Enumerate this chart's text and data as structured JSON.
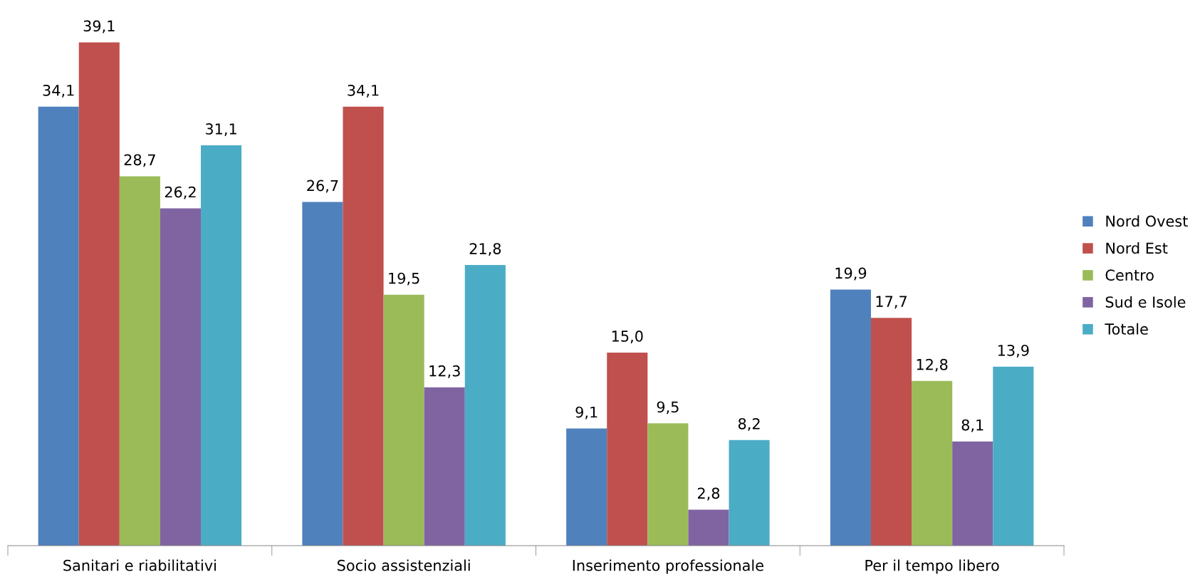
{
  "chart_data": {
    "type": "bar",
    "categories": [
      "Sanitari e riabilitativi",
      "Socio assistenziali",
      "Inserimento professionale",
      "Per il tempo libero"
    ],
    "series": [
      {
        "name": "Nord Ovest",
        "color": "#4f81bd",
        "values": [
          34.1,
          26.7,
          9.1,
          19.9
        ],
        "value_labels": [
          "34,1",
          "26,7",
          "9,1",
          "19,9"
        ]
      },
      {
        "name": "Nord Est",
        "color": "#c0504d",
        "values": [
          39.1,
          34.1,
          15.0,
          17.7
        ],
        "value_labels": [
          "39,1",
          "34,1",
          "15,0",
          "17,7"
        ]
      },
      {
        "name": "Centro",
        "color": "#9bbb59",
        "values": [
          28.7,
          19.5,
          9.5,
          12.8
        ],
        "value_labels": [
          "28,7",
          "19,5",
          "9,5",
          "12,8"
        ]
      },
      {
        "name": "Sud e Isole",
        "color": "#8064a2",
        "values": [
          26.2,
          12.3,
          2.8,
          8.1
        ],
        "value_labels": [
          "26,2",
          "12,3",
          "2,8",
          "8,1"
        ]
      },
      {
        "name": "Totale",
        "color": "#4bacc6",
        "values": [
          31.1,
          21.8,
          8.2,
          13.9
        ],
        "value_labels": [
          "31,1",
          "21,8",
          "8,2",
          "13,9"
        ]
      }
    ],
    "legend": "right",
    "grid": false,
    "tick_labels": "x"
  }
}
